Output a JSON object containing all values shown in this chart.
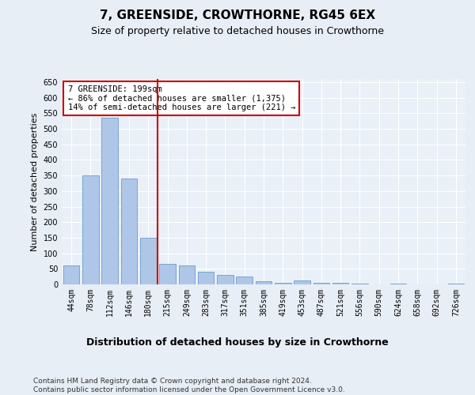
{
  "title": "7, GREENSIDE, CROWTHORNE, RG45 6EX",
  "subtitle": "Size of property relative to detached houses in Crowthorne",
  "xlabel": "Distribution of detached houses by size in Crowthorne",
  "ylabel": "Number of detached properties",
  "categories": [
    "44sqm",
    "78sqm",
    "112sqm",
    "146sqm",
    "180sqm",
    "215sqm",
    "249sqm",
    "283sqm",
    "317sqm",
    "351sqm",
    "385sqm",
    "419sqm",
    "453sqm",
    "487sqm",
    "521sqm",
    "556sqm",
    "590sqm",
    "624sqm",
    "658sqm",
    "692sqm",
    "726sqm"
  ],
  "values": [
    60,
    350,
    535,
    340,
    150,
    65,
    60,
    40,
    30,
    25,
    10,
    5,
    12,
    5,
    5,
    2,
    0,
    2,
    0,
    0,
    2
  ],
  "bar_color": "#aec6e8",
  "bar_edge_color": "#5a8fc2",
  "vline_color": "#cc0000",
  "annotation_text": "7 GREENSIDE: 199sqm\n← 86% of detached houses are smaller (1,375)\n14% of semi-detached houses are larger (221) →",
  "annotation_box_color": "#ffffff",
  "annotation_box_edge": "#cc0000",
  "ylim": [
    0,
    660
  ],
  "yticks": [
    0,
    50,
    100,
    150,
    200,
    250,
    300,
    350,
    400,
    450,
    500,
    550,
    600,
    650
  ],
  "footer": "Contains HM Land Registry data © Crown copyright and database right 2024.\nContains public sector information licensed under the Open Government Licence v3.0.",
  "bg_color": "#e8eef5",
  "plot_bg_color": "#eaf0f7",
  "grid_color": "#ffffff",
  "title_fontsize": 11,
  "subtitle_fontsize": 9,
  "xlabel_fontsize": 9,
  "ylabel_fontsize": 8,
  "tick_fontsize": 7,
  "footer_fontsize": 6.5,
  "annotation_fontsize": 7.5
}
